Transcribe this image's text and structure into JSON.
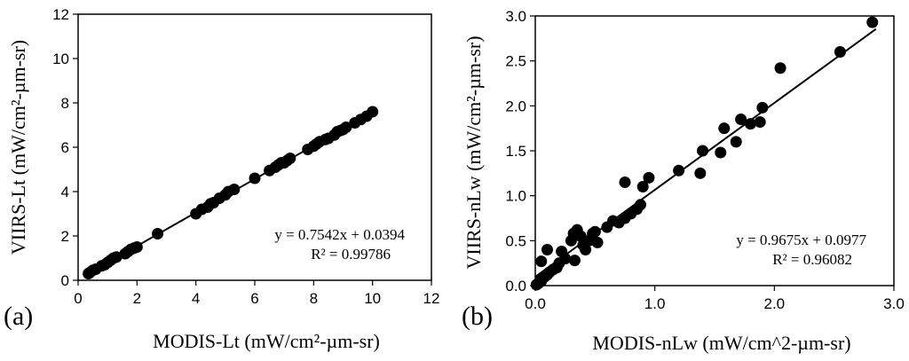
{
  "chart_data": [
    {
      "type": "scatter",
      "panel_label": "(a)",
      "xlabel": "MODIS-Lt (mW/cm²-µm-sr)",
      "ylabel": "VIIRS-Lt (mW/cm²-µm-sr)",
      "xlim": [
        0,
        12
      ],
      "ylim": [
        0,
        12
      ],
      "xticks": [
        0,
        2,
        4,
        6,
        8,
        10,
        12
      ],
      "yticks": [
        0,
        2,
        4,
        6,
        8,
        10,
        12
      ],
      "xtick_labels": [
        "0",
        "2",
        "4",
        "6",
        "8",
        "10",
        "12"
      ],
      "ytick_labels": [
        "0",
        "2",
        "4",
        "6",
        "8",
        "10",
        "12"
      ],
      "grid": false,
      "trendline": {
        "slope": 0.7542,
        "intercept": 0.0394,
        "x_range": [
          0.35,
          10
        ]
      },
      "equation": "y = 0.7542x + 0.0394",
      "r_squared": "R² = 0.99786",
      "points": [
        [
          0.35,
          0.3
        ],
        [
          0.4,
          0.35
        ],
        [
          0.5,
          0.45
        ],
        [
          0.6,
          0.5
        ],
        [
          0.8,
          0.65
        ],
        [
          0.9,
          0.7
        ],
        [
          1.0,
          0.8
        ],
        [
          1.1,
          0.9
        ],
        [
          1.2,
          1.0
        ],
        [
          1.3,
          1.05
        ],
        [
          1.6,
          1.2
        ],
        [
          1.7,
          1.3
        ],
        [
          1.8,
          1.4
        ],
        [
          1.9,
          1.45
        ],
        [
          2.0,
          1.5
        ],
        [
          2.7,
          2.1
        ],
        [
          4.0,
          3.0
        ],
        [
          4.2,
          3.2
        ],
        [
          4.4,
          3.3
        ],
        [
          4.5,
          3.45
        ],
        [
          4.6,
          3.5
        ],
        [
          4.8,
          3.7
        ],
        [
          5.0,
          3.85
        ],
        [
          5.1,
          4.0
        ],
        [
          5.3,
          4.1
        ],
        [
          6.0,
          4.6
        ],
        [
          6.5,
          4.95
        ],
        [
          6.7,
          5.1
        ],
        [
          6.8,
          5.2
        ],
        [
          6.9,
          5.3
        ],
        [
          7.0,
          5.3
        ],
        [
          7.1,
          5.4
        ],
        [
          7.2,
          5.5
        ],
        [
          7.8,
          5.9
        ],
        [
          8.0,
          6.05
        ],
        [
          8.1,
          6.15
        ],
        [
          8.2,
          6.25
        ],
        [
          8.4,
          6.35
        ],
        [
          8.5,
          6.4
        ],
        [
          8.7,
          6.55
        ],
        [
          8.8,
          6.7
        ],
        [
          8.9,
          6.75
        ],
        [
          9.0,
          6.8
        ],
        [
          9.1,
          6.9
        ],
        [
          9.4,
          7.1
        ],
        [
          9.6,
          7.25
        ],
        [
          9.8,
          7.4
        ],
        [
          10.0,
          7.6
        ]
      ]
    },
    {
      "type": "scatter",
      "panel_label": "(b)",
      "xlabel": "MODIS-nLw (mW/cm^2-µm-sr)",
      "ylabel": "VIIRS-nLw (mW/cm²-µm-sr)",
      "xlim": [
        0,
        3
      ],
      "ylim": [
        0,
        3
      ],
      "xticks": [
        0,
        1,
        2,
        3
      ],
      "yticks": [
        0,
        0.5,
        1,
        1.5,
        2,
        2.5,
        3
      ],
      "xtick_labels": [
        "0.0",
        "1.0",
        "2.0",
        "3.0"
      ],
      "ytick_labels": [
        "0.0",
        "0.5",
        "1.0",
        "1.5",
        "2.0",
        "2.5",
        "3.0"
      ],
      "grid": false,
      "trendline": {
        "slope": 0.9675,
        "intercept": 0.0977,
        "x_range": [
          0.0,
          2.85
        ]
      },
      "equation": "y = 0.9675x + 0.0977",
      "r_squared": "R² = 0.96082",
      "points": [
        [
          0.01,
          0.01
        ],
        [
          0.02,
          0.02
        ],
        [
          0.03,
          0.03
        ],
        [
          0.04,
          0.05
        ],
        [
          0.05,
          0.05
        ],
        [
          0.05,
          0.27
        ],
        [
          0.06,
          0.08
        ],
        [
          0.08,
          0.1
        ],
        [
          0.1,
          0.12
        ],
        [
          0.1,
          0.4
        ],
        [
          0.12,
          0.15
        ],
        [
          0.15,
          0.18
        ],
        [
          0.18,
          0.2
        ],
        [
          0.2,
          0.25
        ],
        [
          0.22,
          0.38
        ],
        [
          0.25,
          0.3
        ],
        [
          0.3,
          0.5
        ],
        [
          0.32,
          0.58
        ],
        [
          0.35,
          0.62
        ],
        [
          0.33,
          0.28
        ],
        [
          0.38,
          0.55
        ],
        [
          0.4,
          0.45
        ],
        [
          0.42,
          0.4
        ],
        [
          0.45,
          0.5
        ],
        [
          0.48,
          0.58
        ],
        [
          0.5,
          0.6
        ],
        [
          0.52,
          0.48
        ],
        [
          0.6,
          0.65
        ],
        [
          0.65,
          0.72
        ],
        [
          0.7,
          0.7
        ],
        [
          0.75,
          0.75
        ],
        [
          0.75,
          1.15
        ],
        [
          0.8,
          0.8
        ],
        [
          0.85,
          0.85
        ],
        [
          0.88,
          0.9
        ],
        [
          0.9,
          1.1
        ],
        [
          0.95,
          1.2
        ],
        [
          1.2,
          1.28
        ],
        [
          1.38,
          1.25
        ],
        [
          1.4,
          1.5
        ],
        [
          1.55,
          1.48
        ],
        [
          1.58,
          1.75
        ],
        [
          1.68,
          1.6
        ],
        [
          1.72,
          1.85
        ],
        [
          1.8,
          1.8
        ],
        [
          1.88,
          1.82
        ],
        [
          1.9,
          1.98
        ],
        [
          2.05,
          2.42
        ],
        [
          2.55,
          2.6
        ],
        [
          2.82,
          2.93
        ]
      ]
    }
  ]
}
